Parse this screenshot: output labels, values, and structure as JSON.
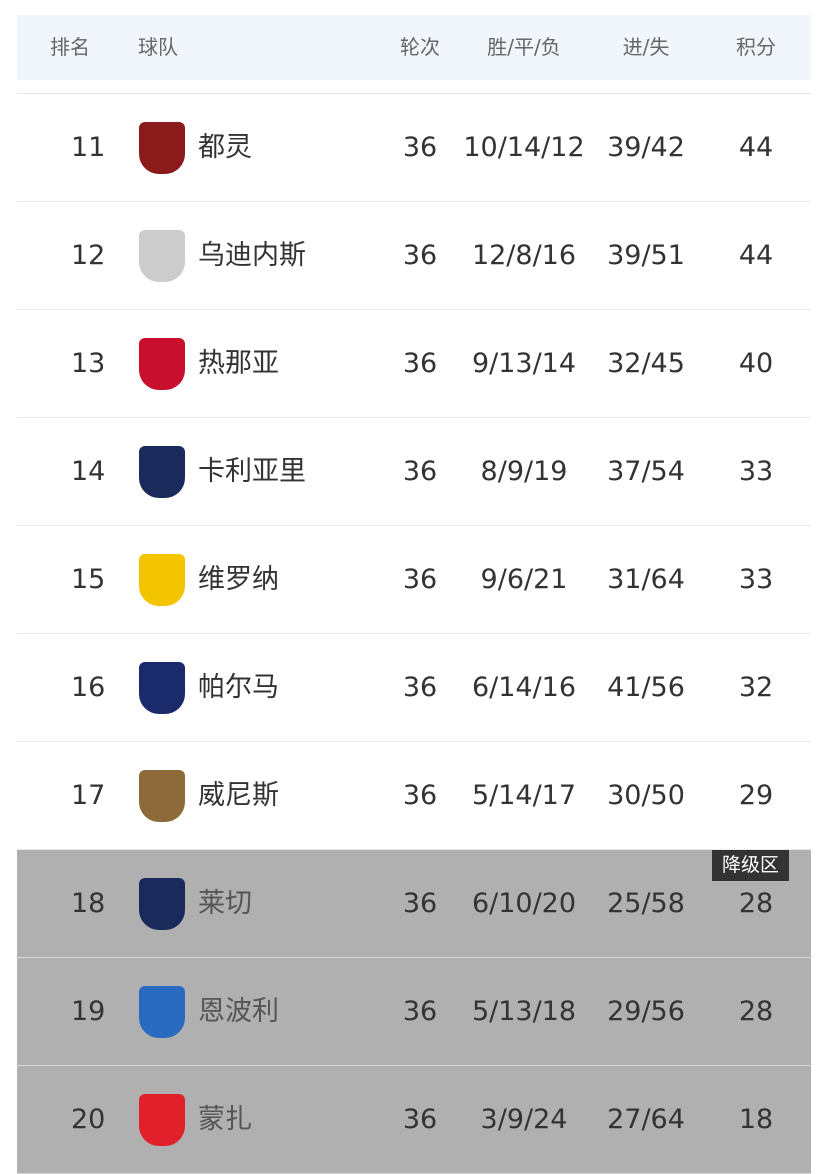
{
  "header": {
    "rank": "排名",
    "team": "球队",
    "rounds": "轮次",
    "wdl": "胜/平/负",
    "goals": "进/失",
    "points": "积分"
  },
  "relegation_badge": "降级区",
  "rows": [
    {
      "rank": "11",
      "team": "都灵",
      "logo": "TORINO",
      "logo_color": "#8b1a1a",
      "rounds": "36",
      "wdl": "10/14/12",
      "goals": "39/42",
      "points": "44",
      "relegation": false
    },
    {
      "rank": "12",
      "team": "乌迪内斯",
      "logo": "UDINESE",
      "logo_color": "#cccccc",
      "rounds": "36",
      "wdl": "12/8/16",
      "goals": "39/51",
      "points": "44",
      "relegation": false
    },
    {
      "rank": "13",
      "team": "热那亚",
      "logo": "GENOA",
      "logo_color": "#c8102e",
      "rounds": "36",
      "wdl": "9/13/14",
      "goals": "32/45",
      "points": "40",
      "relegation": false
    },
    {
      "rank": "14",
      "team": "卡利亚里",
      "logo": "CAGLIARI",
      "logo_color": "#1a2a5a",
      "rounds": "36",
      "wdl": "8/9/19",
      "goals": "37/54",
      "points": "33",
      "relegation": false
    },
    {
      "rank": "15",
      "team": "维罗纳",
      "logo": "HELLAS VERONA",
      "logo_color": "#f2c500",
      "rounds": "36",
      "wdl": "9/6/21",
      "goals": "31/64",
      "points": "33",
      "relegation": false
    },
    {
      "rank": "16",
      "team": "帕尔马",
      "logo": "PARMA CALCIO",
      "logo_color": "#1a2a6a",
      "rounds": "36",
      "wdl": "6/14/16",
      "goals": "41/56",
      "points": "32",
      "relegation": false
    },
    {
      "rank": "17",
      "team": "威尼斯",
      "logo": "VENEZIA FC",
      "logo_color": "#8c6a3a",
      "rounds": "36",
      "wdl": "5/14/17",
      "goals": "30/50",
      "points": "29",
      "relegation": false
    },
    {
      "rank": "18",
      "team": "莱切",
      "logo": "LECCE",
      "logo_color": "#1a2a5a",
      "rounds": "36",
      "wdl": "6/10/20",
      "goals": "25/58",
      "points": "28",
      "relegation": true
    },
    {
      "rank": "19",
      "team": "恩波利",
      "logo": "EMPOLI F.C.",
      "logo_color": "#2a6ac0",
      "rounds": "36",
      "wdl": "5/13/18",
      "goals": "29/56",
      "points": "28",
      "relegation": true
    },
    {
      "rank": "20",
      "team": "蒙扎",
      "logo": "AC MONZA",
      "logo_color": "#e0202a",
      "rounds": "36",
      "wdl": "3/9/24",
      "goals": "27/64",
      "points": "18",
      "relegation": true
    }
  ]
}
